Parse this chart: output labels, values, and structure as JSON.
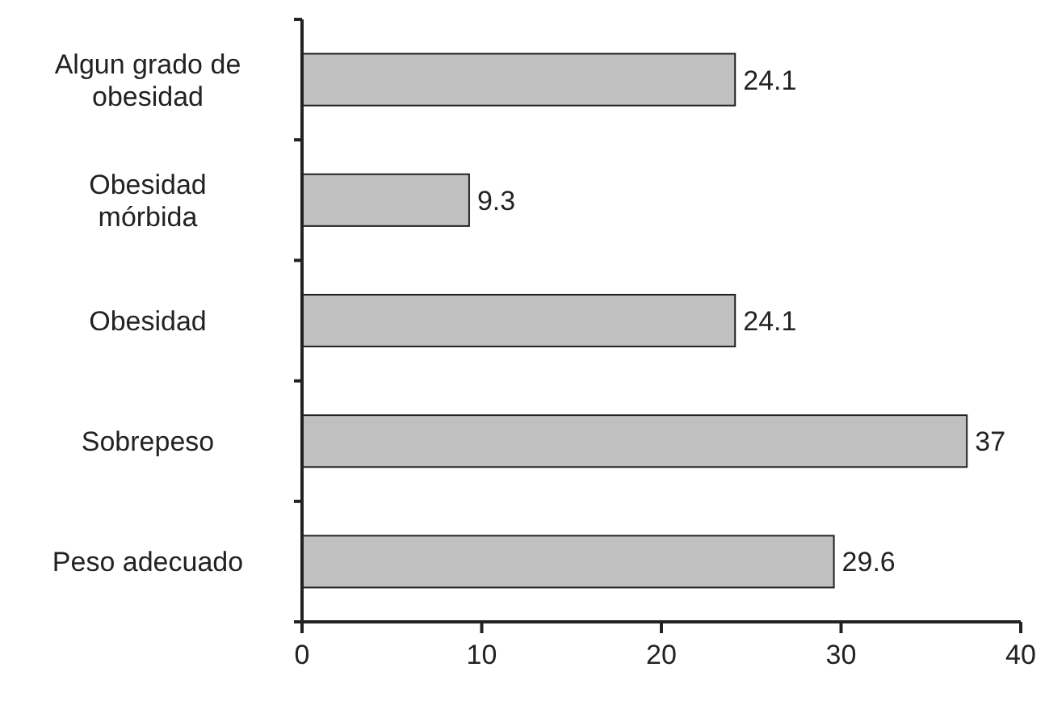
{
  "chart_data": {
    "type": "bar",
    "orientation": "horizontal",
    "categories": [
      "Algun grado de obesidad",
      "Obesidad mórbida",
      "Obesidad",
      "Sobrepeso",
      "Peso adecuado"
    ],
    "values": [
      24.1,
      9.3,
      24.1,
      37,
      29.6
    ],
    "color": "#c0c0c0",
    "data_labels": true,
    "xlim": [
      0,
      40
    ],
    "xticks": [
      0,
      10,
      20,
      30,
      40
    ],
    "grid": false
  }
}
